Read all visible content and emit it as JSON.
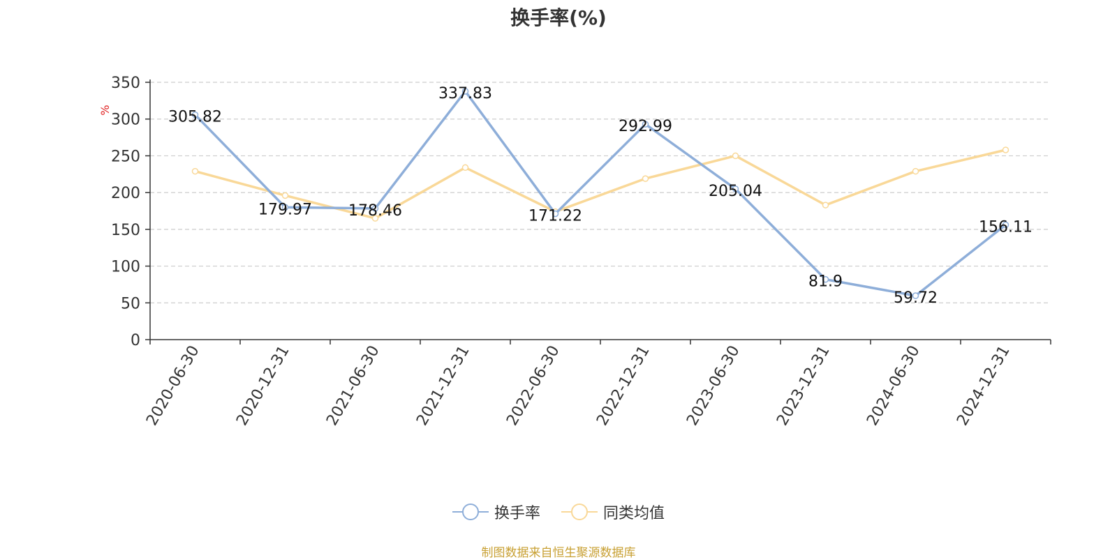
{
  "chart_data": {
    "type": "line",
    "title": "换手率(%)",
    "ylabel": "%",
    "ylim": [
      0,
      350
    ],
    "yticks": [
      0,
      50,
      100,
      150,
      200,
      250,
      300,
      350
    ],
    "categories": [
      "2020-06-30",
      "2020-12-31",
      "2021-06-30",
      "2021-12-31",
      "2022-06-30",
      "2022-12-31",
      "2023-06-30",
      "2023-12-31",
      "2024-06-30",
      "2024-12-31"
    ],
    "series": [
      {
        "name": "换手率",
        "color": "#8eaed9",
        "values": [
          305.82,
          179.97,
          178.46,
          337.83,
          171.22,
          292.99,
          205.04,
          81.9,
          59.72,
          156.11
        ],
        "labels": [
          "305.82",
          "179.97",
          "178.46",
          "337.83",
          "171.22",
          "292.99",
          "205.04",
          "81.9",
          "59.72",
          "156.11"
        ]
      },
      {
        "name": "同类均值",
        "color": "#f9d898",
        "values": [
          229,
          196,
          165,
          234,
          174,
          219,
          250,
          183,
          229,
          258
        ]
      }
    ],
    "grid": true,
    "legend": "bottom-center"
  },
  "footer": {
    "source": "制图数据来自恒生聚源数据库"
  }
}
